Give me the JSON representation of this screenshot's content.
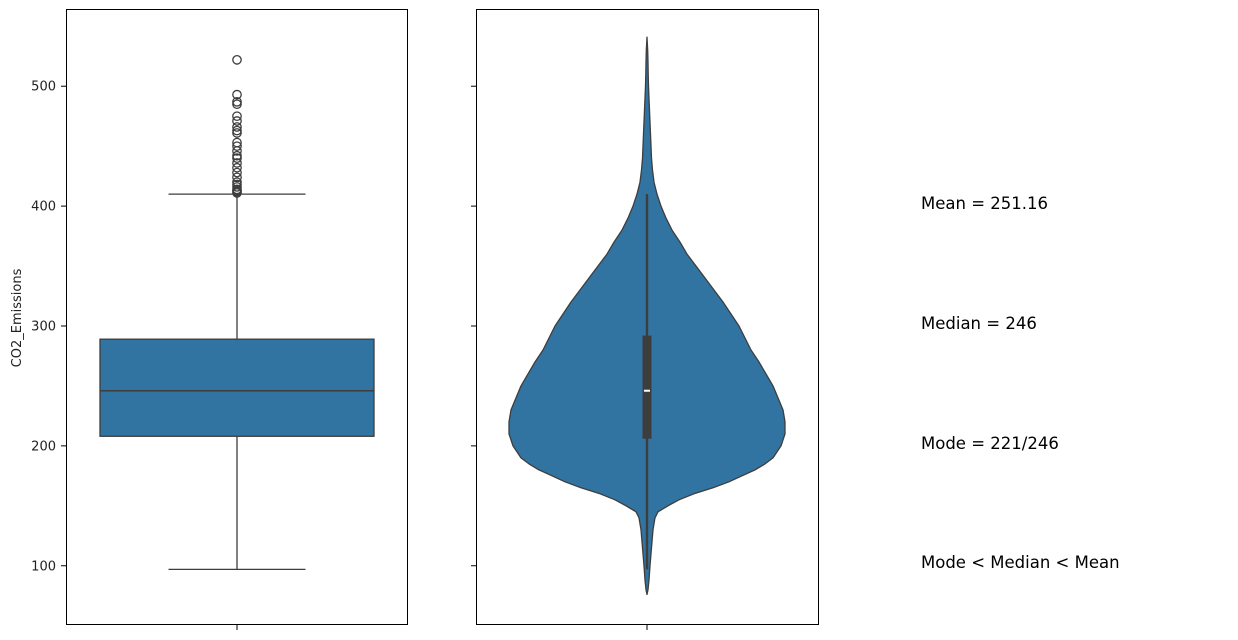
{
  "chart_data": {
    "type": "box-violin",
    "ylabel": "CO2_Emissions",
    "ylim": [
      51,
      564
    ],
    "yticks": [
      100,
      200,
      300,
      400,
      500
    ],
    "ytick_labels": [
      "100",
      "200",
      "300",
      "400",
      "500"
    ],
    "grid": false,
    "color": "#3274a1",
    "edge_color": "#3d3d3d",
    "boxplot": {
      "whisker_low": 97,
      "q1": 208,
      "median": 246,
      "q3": 289,
      "whisker_high": 410,
      "outliers": [
        411,
        412,
        413,
        414,
        416,
        418,
        420,
        424,
        428,
        432,
        436,
        440,
        442,
        446,
        450,
        453,
        461,
        463,
        466,
        471,
        475,
        485,
        487,
        493,
        522
      ]
    },
    "violin": {
      "min": 76,
      "max": 541,
      "q1": 206,
      "median": 246,
      "q3": 292,
      "whisker_low": 97,
      "whisker_high": 410,
      "density_profile": [
        [
          76,
          0
        ],
        [
          80,
          1
        ],
        [
          88,
          2
        ],
        [
          100,
          3
        ],
        [
          110,
          4
        ],
        [
          120,
          5
        ],
        [
          130,
          6
        ],
        [
          140,
          8
        ],
        [
          145,
          11
        ],
        [
          150,
          21
        ],
        [
          155,
          32
        ],
        [
          160,
          47
        ],
        [
          165,
          66
        ],
        [
          170,
          82
        ],
        [
          175,
          95
        ],
        [
          180,
          108
        ],
        [
          185,
          118
        ],
        [
          190,
          126
        ],
        [
          200,
          134
        ],
        [
          210,
          138
        ],
        [
          220,
          138
        ],
        [
          230,
          136
        ],
        [
          240,
          131
        ],
        [
          250,
          126
        ],
        [
          260,
          119
        ],
        [
          270,
          112
        ],
        [
          280,
          104
        ],
        [
          290,
          98
        ],
        [
          300,
          92
        ],
        [
          310,
          84
        ],
        [
          320,
          76
        ],
        [
          330,
          67
        ],
        [
          340,
          58
        ],
        [
          350,
          49
        ],
        [
          360,
          40
        ],
        [
          370,
          33
        ],
        [
          380,
          25
        ],
        [
          390,
          19
        ],
        [
          400,
          14
        ],
        [
          410,
          10
        ],
        [
          420,
          7
        ],
        [
          430,
          5.5
        ],
        [
          440,
          4.5
        ],
        [
          450,
          4
        ],
        [
          460,
          3.5
        ],
        [
          470,
          3
        ],
        [
          480,
          2.5
        ],
        [
          490,
          2
        ],
        [
          500,
          1.5
        ],
        [
          510,
          1.2
        ],
        [
          520,
          1
        ],
        [
          530,
          0.7
        ],
        [
          541,
          0
        ]
      ]
    }
  },
  "stats": {
    "mean_text": "Mean = 251.16",
    "median_text": "Median = 246",
    "mode_text": "Mode = 221/246",
    "relation_text": "Mode < Median < Mean"
  }
}
